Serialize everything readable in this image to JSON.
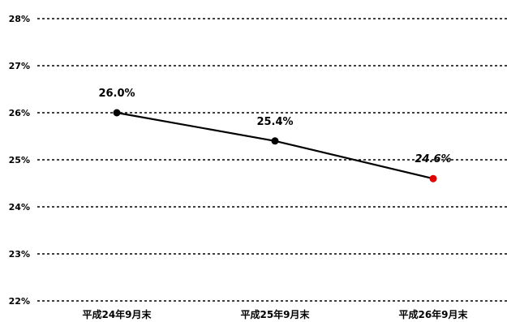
{
  "chart_data": {
    "type": "line",
    "categories": [
      "平成24年9月末",
      "平成25年9月末",
      "平成26年9月末"
    ],
    "series": [
      {
        "values": [
          26.0,
          25.4,
          24.6
        ]
      }
    ],
    "data_labels": [
      "26.0%",
      "25.4%",
      "24.6%"
    ],
    "yticks": [
      22,
      23,
      24,
      25,
      26,
      27,
      28
    ],
    "ytick_labels": [
      "22%",
      "23%",
      "24%",
      "25%",
      "26%",
      "27%",
      "28%"
    ],
    "ylim": [
      22,
      28
    ],
    "grid": true,
    "grid_style": "dotted",
    "point_colors": [
      "#000000",
      "#000000",
      "#e00000"
    ],
    "line_color": "#000000",
    "highlight_label_italic": [
      false,
      false,
      true
    ]
  }
}
